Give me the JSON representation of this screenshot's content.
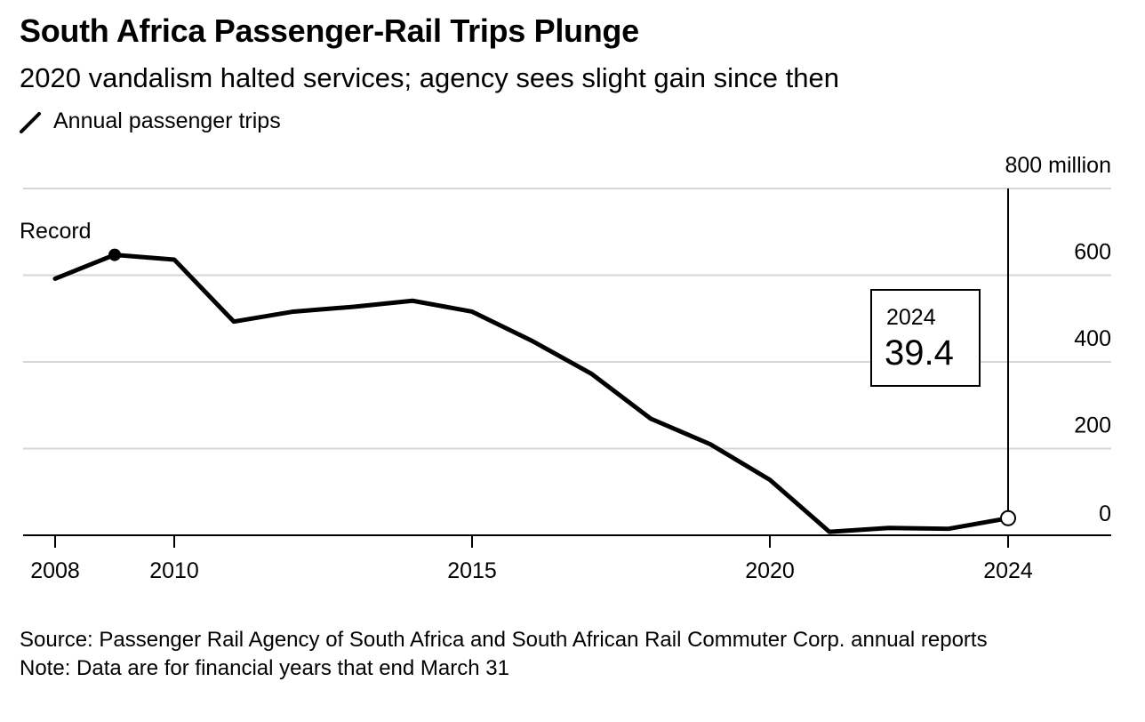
{
  "chart_data": {
    "type": "line",
    "title": "South Africa Passenger-Rail Trips Plunge",
    "subtitle": "2020 vandalism halted services; agency sees slight gain since then",
    "legend": "Annual passenger trips",
    "series": [
      {
        "name": "Annual passenger trips",
        "x": [
          2008,
          2009,
          2010,
          2011,
          2012,
          2013,
          2014,
          2015,
          2016,
          2017,
          2018,
          2019,
          2020,
          2021,
          2022,
          2023,
          2024
        ],
        "values": [
          592,
          647,
          636,
          493,
          516,
          527,
          541,
          516,
          449,
          373,
          269,
          210,
          128,
          8,
          17,
          15,
          39.4
        ]
      }
    ],
    "x_ticks": [
      "2008",
      "2010",
      "2015",
      "2020",
      "2024"
    ],
    "x_tick_values": [
      2008,
      2010,
      2015,
      2020,
      2024
    ],
    "y_ticks": [
      "800 million",
      "600",
      "400",
      "200",
      "0"
    ],
    "y_tick_values": [
      800,
      600,
      400,
      200,
      0
    ],
    "xlim": [
      2007.5,
      2025.7
    ],
    "ylim": [
      0,
      800
    ],
    "annotations": {
      "record_label": "Record",
      "record_year": 2009,
      "callout_year_label": "2024",
      "callout_value_label": "39.4",
      "callout_year": 2024
    }
  },
  "footer": {
    "source": "Source: Passenger Rail Agency of South Africa and South African Rail Commuter Corp. annual reports",
    "note": "Note: Data are for financial years that end March 31"
  },
  "colors": {
    "line": "#000000",
    "grid": "#d6d6d6",
    "axis": "#000000",
    "callout_border": "#000000"
  }
}
